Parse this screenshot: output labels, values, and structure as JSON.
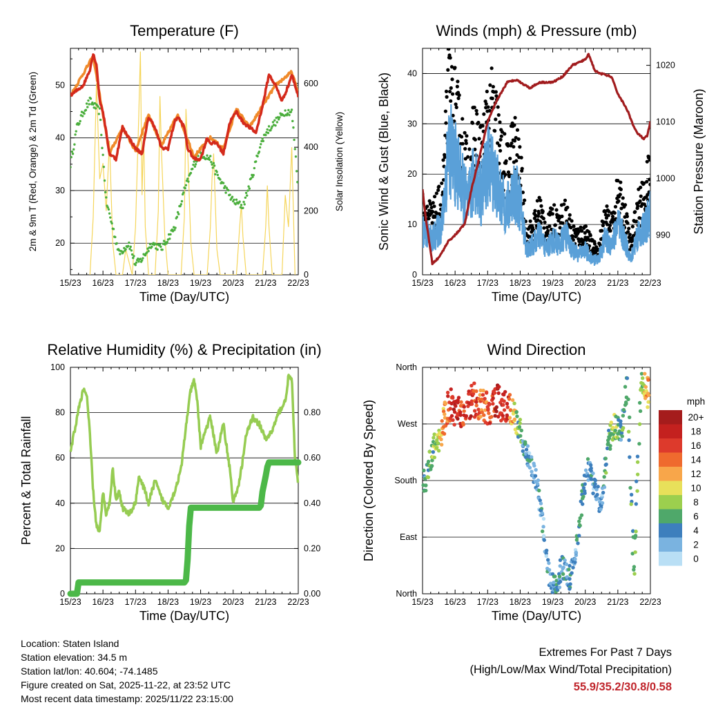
{
  "colors": {
    "temp_2m": "#d42a1c",
    "temp_9m": "#f08a2a",
    "dewpoint": "#4aae3c",
    "insolation": "#f5d55a",
    "gust": "#000000",
    "wind": "#5aa0d8",
    "pressure": "#a11c1e",
    "humidity": "#96cc52",
    "rainfall": "#4cb848",
    "extremes": "#c0262d"
  },
  "panels": {
    "temperature": {
      "title": "Temperature (F)",
      "ylabel": "2m & 9m T (Red, Orange) & 2m Td (Green)",
      "y2label": "Solar Insolation (Yellow)",
      "xlabel": "Time (Day/UTC)"
    },
    "winds": {
      "title": "Winds (mph) & Pressure (mb)",
      "ylabel": "Sonic Wind & Gust (Blue, Black)",
      "y2label": "Station Pressure (Maroon)",
      "xlabel": "Time (Day/UTC)"
    },
    "humidity": {
      "title": "Relative Humidity (%) & Precipitation (in)",
      "ylabel": "Percent & Total Rainfall",
      "xlabel": "Time (Day/UTC)"
    },
    "direction": {
      "title": "Wind Direction",
      "ylabel": "Direction (Colored By Speed)",
      "xlabel": "Time (Day/UTC)",
      "legend_title": "mph",
      "legend_labels": [
        "20+",
        "18",
        "16",
        "14",
        "12",
        "10",
        "8",
        "6",
        "4",
        "2",
        "0"
      ],
      "legend_colors": [
        "#a51c1c",
        "#c4211f",
        "#dd3a2c",
        "#ef6a2e",
        "#f8a64a",
        "#e8e05a",
        "#9ccf4e",
        "#4fa86a",
        "#3d7fbd",
        "#7ab3e0",
        "#b9dff5"
      ]
    }
  },
  "info": {
    "location": "Location: Staten Island",
    "elevation": "Station elevation: 34.5 m",
    "latlon": "Station lat/lon: 40.604; -74.1485",
    "created": "Figure created on Sat, 2025-11-22, at 23:52 UTC",
    "recent": "Most recent data timestamp: 2025/11/22 23:15:00"
  },
  "extremes": {
    "line1": "Extremes For Past 7 Days",
    "line2": "(High/Low/Max Wind/Total Precipitation)",
    "values": "55.9/35.2/30.8/0.58"
  },
  "chart_data": [
    {
      "type": "line",
      "title": "Temperature (F)",
      "xlabel": "Time (Day/UTC)",
      "ylabel": "2m & 9m T (Red, Orange) & 2m Td (Green)",
      "y2label": "Solar Insolation (Yellow)",
      "xticks": [
        "15/23",
        "16/23",
        "17/23",
        "18/23",
        "19/23",
        "20/23",
        "21/23",
        "22/23"
      ],
      "xlim": [
        0,
        7
      ],
      "ylim": [
        14,
        57
      ],
      "yticks": [
        20,
        30,
        40,
        50
      ],
      "y2lim": [
        0,
        710
      ],
      "y2ticks": [
        0,
        200,
        400,
        600
      ],
      "series": [
        {
          "name": "2m T",
          "axis": "left",
          "x": [
            0,
            0.2,
            0.4,
            0.6,
            0.7,
            0.8,
            0.9,
            1.0,
            1.1,
            1.2,
            1.4,
            1.6,
            1.8,
            2.0,
            2.2,
            2.4,
            2.6,
            2.8,
            3.0,
            3.2,
            3.3,
            3.5,
            3.6,
            3.8,
            4.0,
            4.2,
            4.3,
            4.5,
            4.7,
            4.9,
            5.1,
            5.3,
            5.5,
            5.7,
            5.9,
            6.1,
            6.3,
            6.5,
            6.7,
            6.8,
            7.0
          ],
          "values": [
            48,
            49,
            50,
            53,
            55.9,
            54,
            47,
            45,
            41,
            37,
            36,
            42,
            40,
            38,
            37,
            44,
            42,
            38,
            38,
            43,
            44,
            42,
            38,
            36,
            36,
            40,
            39,
            39,
            37,
            43,
            45,
            43,
            42,
            41,
            46,
            52,
            50,
            47,
            50,
            52,
            48
          ]
        },
        {
          "name": "9m T",
          "axis": "left",
          "x": [
            0,
            0.7,
            1.2,
            1.6,
            2.0,
            2.4,
            2.8,
            3.3,
            3.8,
            4.3,
            4.7,
            5.1,
            5.5,
            5.9,
            6.3,
            6.8,
            7.0
          ],
          "values": [
            48,
            55.5,
            37,
            42,
            37.5,
            44.5,
            38.5,
            44.5,
            36.5,
            40,
            38,
            45.5,
            42,
            46,
            50,
            52.5,
            48.5
          ]
        },
        {
          "name": "2m Td",
          "axis": "left",
          "x": [
            0,
            0.2,
            0.4,
            0.6,
            0.9,
            1.1,
            1.3,
            1.5,
            1.8,
            2.0,
            2.2,
            2.5,
            2.8,
            3.2,
            3.5,
            3.8,
            4.0,
            4.3,
            4.5,
            4.8,
            5.0,
            5.3,
            5.6,
            5.8,
            6.0,
            6.3,
            6.6,
            6.8,
            6.9,
            7.0
          ],
          "values": [
            35,
            42,
            45,
            47,
            45,
            28,
            23,
            18,
            20,
            16,
            17,
            20,
            19,
            23,
            30,
            35,
            37,
            36,
            33,
            30,
            28,
            27,
            33,
            38,
            41,
            43,
            45,
            45,
            38,
            30
          ]
        },
        {
          "name": "Solar Insolation",
          "axis": "right",
          "x": [
            0.6,
            0.7,
            0.8,
            0.9,
            1.0,
            1.1,
            1.2,
            1.3,
            1.4,
            1.6,
            1.7,
            1.8,
            1.9,
            2.0,
            2.1,
            2.15,
            2.2,
            2.25,
            2.3,
            2.4,
            2.6,
            2.7,
            2.75,
            2.8,
            2.9,
            3.0,
            3.4,
            3.5,
            3.55,
            3.6,
            3.7,
            3.8,
            4.2,
            4.3,
            4.35,
            4.4,
            4.5,
            4.6,
            5.1,
            5.2,
            5.25,
            5.3,
            5.4,
            5.9,
            6.0,
            6.05,
            6.1,
            6.2,
            6.5,
            6.6,
            6.7,
            6.8,
            6.9
          ],
          "values": [
            0,
            180,
            600,
            300,
            350,
            200,
            420,
            100,
            0,
            0,
            80,
            40,
            0,
            150,
            500,
            700,
            250,
            450,
            150,
            0,
            0,
            200,
            560,
            380,
            120,
            0,
            0,
            180,
            520,
            400,
            100,
            0,
            0,
            150,
            300,
            380,
            80,
            0,
            0,
            150,
            220,
            120,
            0,
            0,
            150,
            280,
            150,
            0,
            0,
            250,
            150,
            400,
            0
          ]
        }
      ]
    },
    {
      "type": "line",
      "title": "Winds (mph) & Pressure (mb)",
      "xlabel": "Time (Day/UTC)",
      "ylabel": "Sonic Wind & Gust (Blue, Black)",
      "y2label": "Station Pressure (Maroon)",
      "xticks": [
        "15/23",
        "16/23",
        "17/23",
        "18/23",
        "19/23",
        "20/23",
        "21/23",
        "22/23"
      ],
      "xlim": [
        0,
        7
      ],
      "ylim": [
        0,
        45
      ],
      "yticks": [
        0,
        10,
        20,
        30,
        40
      ],
      "y2lim": [
        983,
        1023
      ],
      "y2ticks": [
        990,
        1000,
        1010,
        1020
      ],
      "series": [
        {
          "name": "Gust",
          "axis": "left",
          "x": [
            0,
            0.3,
            0.6,
            0.8,
            1.0,
            1.2,
            1.4,
            1.6,
            1.8,
            2.0,
            2.2,
            2.4,
            2.6,
            2.8,
            3.0,
            3.2,
            3.4,
            3.6,
            3.8,
            4.0,
            4.2,
            4.4,
            4.6,
            4.8,
            5.0,
            5.2,
            5.4,
            5.6,
            5.8,
            6.0,
            6.2,
            6.4,
            6.6,
            6.8,
            7.0
          ],
          "values": [
            14,
            12,
            16,
            38,
            35,
            28,
            22,
            30,
            25,
            33,
            35,
            26,
            22,
            28,
            22,
            8,
            10,
            14,
            9,
            12,
            11,
            13,
            9,
            8,
            9,
            6,
            5,
            12,
            10,
            17,
            13,
            6,
            14,
            16,
            22
          ]
        },
        {
          "name": "Sonic Wind",
          "axis": "left",
          "x": [
            0,
            0.3,
            0.6,
            0.8,
            1.0,
            1.2,
            1.4,
            1.6,
            1.8,
            2.0,
            2.2,
            2.4,
            2.6,
            2.8,
            3.0,
            3.2,
            3.4,
            3.6,
            3.8,
            4.0,
            4.2,
            4.4,
            4.6,
            4.8,
            5.0,
            5.2,
            5.4,
            5.6,
            5.8,
            6.0,
            6.2,
            6.4,
            6.6,
            6.8,
            7.0
          ],
          "values": [
            9,
            7,
            10,
            26,
            22,
            18,
            14,
            20,
            16,
            22,
            20,
            15,
            13,
            17,
            14,
            5,
            6,
            8,
            5,
            7,
            6,
            8,
            5,
            4,
            5,
            3,
            3,
            7,
            6,
            10,
            7,
            3,
            8,
            9,
            12
          ]
        },
        {
          "name": "Station Pressure",
          "axis": "right",
          "x": [
            0,
            0.1,
            0.2,
            0.3,
            0.5,
            0.8,
            1.0,
            1.3,
            1.5,
            1.8,
            2.0,
            2.3,
            2.6,
            2.9,
            3.0,
            3.3,
            3.6,
            4.0,
            4.3,
            4.6,
            5.0,
            5.1,
            5.3,
            5.5,
            5.8,
            6.0,
            6.3,
            6.5,
            6.6,
            6.8,
            6.9,
            7.0
          ],
          "values": [
            998,
            993,
            989,
            985,
            986,
            989,
            990,
            992,
            998,
            1005,
            1010,
            1014,
            1017,
            1017.5,
            1017,
            1016,
            1017,
            1017,
            1018,
            1020,
            1021,
            1022,
            1019,
            1018.5,
            1018,
            1015,
            1012,
            1009,
            1008,
            1007,
            1007.5,
            1010
          ]
        }
      ]
    },
    {
      "type": "line",
      "title": "Relative Humidity (%) & Precipitation (in)",
      "xlabel": "Time (Day/UTC)",
      "ylabel": "Percent & Total Rainfall",
      "xticks": [
        "15/23",
        "16/23",
        "17/23",
        "18/23",
        "19/23",
        "20/23",
        "21/23",
        "22/23"
      ],
      "xlim": [
        0,
        7
      ],
      "ylim": [
        0,
        100
      ],
      "yticks": [
        0,
        20,
        40,
        60,
        80,
        100
      ],
      "y2lim": [
        0,
        1.0
      ],
      "y2ticks": [
        0.0,
        0.2,
        0.4,
        0.6,
        0.8
      ],
      "series": [
        {
          "name": "Relative Humidity",
          "axis": "left",
          "x": [
            0,
            0.1,
            0.3,
            0.4,
            0.5,
            0.6,
            0.7,
            0.8,
            0.9,
            1.0,
            1.1,
            1.2,
            1.3,
            1.4,
            1.5,
            1.6,
            1.8,
            2.0,
            2.1,
            2.3,
            2.4,
            2.6,
            2.8,
            3.0,
            3.2,
            3.4,
            3.6,
            3.7,
            3.8,
            3.9,
            4.0,
            4.1,
            4.3,
            4.5,
            4.7,
            4.9,
            5.0,
            5.2,
            5.4,
            5.6,
            5.8,
            6.0,
            6.2,
            6.4,
            6.6,
            6.7,
            6.8,
            6.9,
            7.0
          ],
          "values": [
            62,
            70,
            85,
            90,
            88,
            70,
            45,
            30,
            27,
            45,
            35,
            40,
            55,
            42,
            45,
            38,
            35,
            40,
            52,
            45,
            40,
            50,
            42,
            38,
            45,
            55,
            80,
            90,
            94,
            85,
            65,
            70,
            78,
            62,
            75,
            55,
            40,
            50,
            70,
            78,
            75,
            68,
            72,
            80,
            85,
            96,
            95,
            60,
            48
          ]
        },
        {
          "name": "Total Rainfall",
          "axis": "right",
          "x": [
            0,
            0.2,
            0.25,
            3.5,
            3.55,
            3.6,
            3.65,
            3.7,
            5.8,
            5.85,
            5.9,
            6.0,
            6.05,
            6.1,
            7.0
          ],
          "values": [
            0,
            0,
            0.05,
            0.05,
            0.06,
            0.15,
            0.3,
            0.38,
            0.38,
            0.39,
            0.45,
            0.52,
            0.56,
            0.58,
            0.58
          ]
        }
      ]
    },
    {
      "type": "scatter",
      "title": "Wind Direction",
      "xlabel": "Time (Day/UTC)",
      "ylabel": "Direction (Colored By Speed)",
      "xticks": [
        "15/23",
        "16/23",
        "17/23",
        "18/23",
        "19/23",
        "20/23",
        "21/23",
        "22/23"
      ],
      "xlim": [
        0,
        7
      ],
      "yticks": [
        "North",
        "East",
        "South",
        "West",
        "North"
      ],
      "ylim": [
        0,
        360
      ],
      "colorbar": {
        "label": "mph",
        "levels": [
          "0",
          "2",
          "4",
          "6",
          "8",
          "10",
          "12",
          "14",
          "16",
          "18",
          "20+"
        ]
      },
      "series": [
        {
          "name": "direction",
          "x": [
            0.1,
            0.3,
            0.5,
            0.8,
            1.0,
            1.2,
            1.5,
            1.8,
            2.0,
            2.3,
            2.6,
            2.9,
            3.1,
            3.3,
            3.5,
            3.7,
            3.9,
            4.1,
            4.3,
            4.5,
            4.7,
            4.9,
            5.1,
            5.3,
            5.5,
            5.7,
            5.9,
            6.1,
            6.3,
            6.5,
            6.7,
            6.9
          ],
          "values": [
            180,
            225,
            245,
            300,
            295,
            290,
            310,
            300,
            295,
            305,
            300,
            275,
            240,
            210,
            180,
            110,
            20,
            10,
            45,
            20,
            60,
            150,
            200,
            170,
            135,
            240,
            265,
            255,
            330,
            20,
            340,
            320
          ],
          "speeds": [
            5,
            7,
            9,
            16,
            18,
            16,
            17,
            14,
            15,
            18,
            16,
            8,
            4,
            3,
            3,
            3,
            3,
            4,
            3,
            4,
            3,
            5,
            4,
            3,
            3,
            6,
            8,
            5,
            6,
            5,
            7,
            12
          ]
        }
      ]
    }
  ]
}
